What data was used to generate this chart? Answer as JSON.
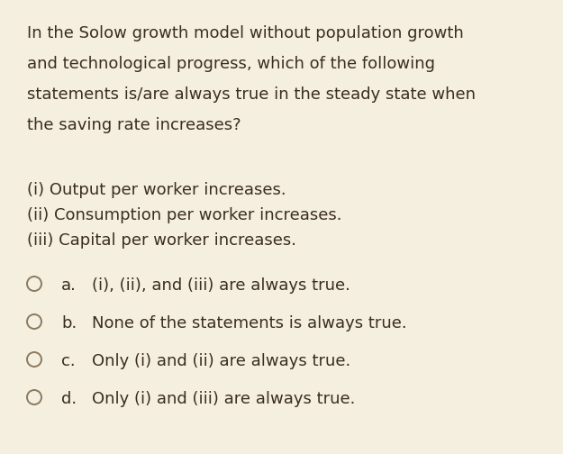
{
  "background_color": "#f5efe0",
  "text_color": "#3a2e1e",
  "circle_color": "#8a7a60",
  "question_lines": [
    "In the Solow growth model without population growth",
    "and technological progress, which of the following",
    "statements is/are always true in the steady state when",
    "the saving rate increases?"
  ],
  "statements": [
    "(i) Output per worker increases.",
    "(ii) Consumption per worker increases.",
    "(iii) Capital per worker increases."
  ],
  "options": [
    {
      "label": "a.",
      "text": "(i), (ii), and (iii) are always true."
    },
    {
      "label": "b.",
      "text": "None of the statements is always true."
    },
    {
      "label": "c.",
      "text": "Only (i) and (ii) are always true."
    },
    {
      "label": "d.",
      "text": "Only (i) and (iii) are always true."
    }
  ],
  "fontsize": 13.0,
  "fig_width": 6.25,
  "fig_height": 5.04,
  "dpi": 100
}
